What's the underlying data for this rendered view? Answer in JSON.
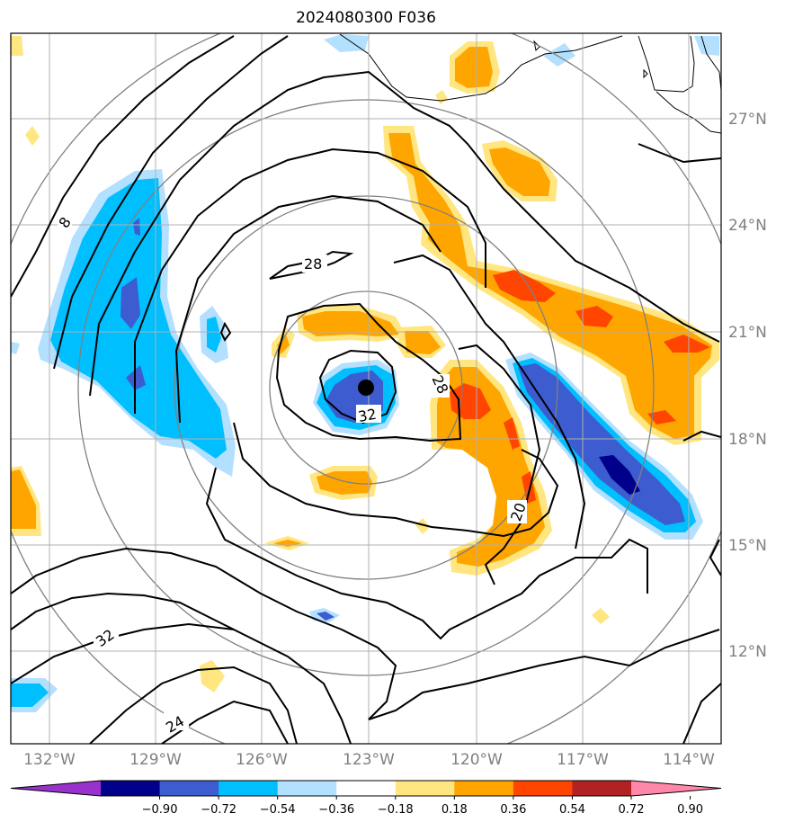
{
  "title": "2024080300 F036",
  "chart_data": {
    "type": "contour-map",
    "title": "2024080300 F036",
    "lon_range": [
      -133,
      -113
    ],
    "lat_range": [
      9.5,
      29.5
    ],
    "lon_ticks": [
      "132°W",
      "129°W",
      "126°W",
      "123°W",
      "120°W",
      "117°W",
      "114°W"
    ],
    "lat_ticks": [
      "27°N",
      "24°N",
      "21°N",
      "18°N",
      "15°N",
      "12°N"
    ],
    "grid": true,
    "storm_center": {
      "lon": -123.0,
      "lat": 19.5
    },
    "range_rings": 4,
    "contour_labels": [
      "8",
      "28",
      "28",
      "32",
      "20",
      "32",
      "24"
    ],
    "colorbar": {
      "ticks": [
        "−0.90",
        "−0.72",
        "−0.54",
        "−0.36",
        "−0.18",
        "0.18",
        "0.36",
        "0.54",
        "0.72",
        "0.90"
      ],
      "colors": [
        "#9932cc",
        "#00008b",
        "#3c5ccf",
        "#00bfff",
        "#b3e0ff",
        "#ffffff",
        "#ffe680",
        "#ffa500",
        "#ff4500",
        "#b22222",
        "#ff88aa"
      ],
      "extend": "both"
    }
  }
}
